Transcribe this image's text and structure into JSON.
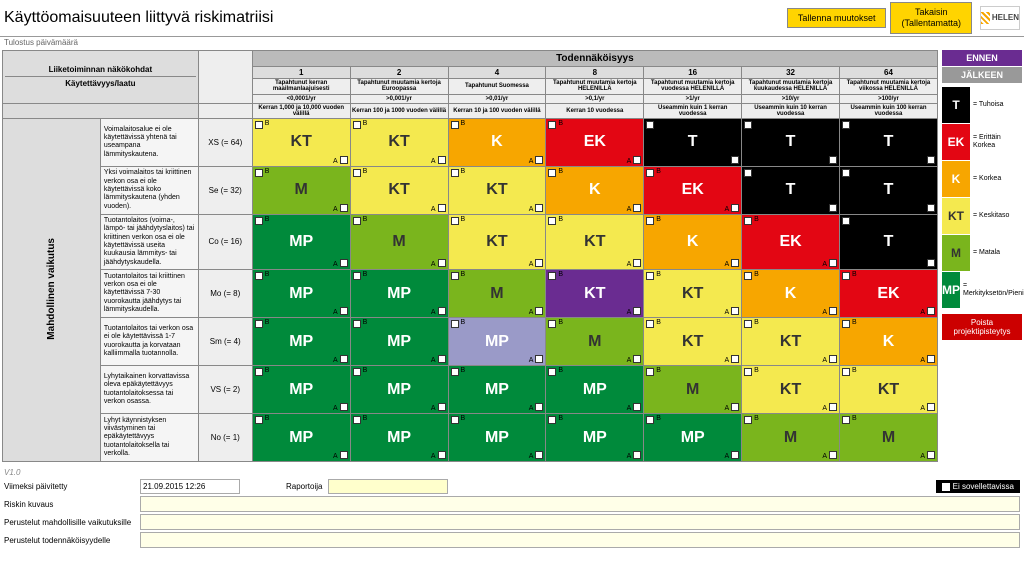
{
  "title": "Käyttöomaisuuteen liittyvä riskimatriisi",
  "subhead": "Tulostus päivämäärä",
  "buttons": {
    "save": "Tallenna muutokset",
    "back": "Takaisin\n(Tallentamatta)",
    "poista": "Poista projektipisteytys"
  },
  "logo": "HELEN",
  "side_btns": {
    "ennen": "ENNEN",
    "jalkeen": "JÄLKEEN"
  },
  "prob_header": "Todennäköisyys",
  "impact_header": "Mahdollinen vaikutus",
  "corner": {
    "line1": "Liiketoiminnan näkökohdat",
    "line2": "Käytettävyys/laatu"
  },
  "cols": [
    {
      "n": "1",
      "d1": "Tapahtunut kerran maailmanlaajuisesti",
      "d2": "<0,0001/yr",
      "d3": "Kerran 1,000 ja 10,000 vuoden välillä"
    },
    {
      "n": "2",
      "d1": "Tapahtunut muutamia kertoja Euroopassa",
      "d2": ">0,001/yr",
      "d3": "Kerran 100 ja 1000 vuoden välillä"
    },
    {
      "n": "4",
      "d1": "Tapahtunut Suomessa",
      "d2": ">0,01/yr",
      "d3": "Kerran 10 ja 100 vuoden välillä"
    },
    {
      "n": "8",
      "d1": "Tapahtunut muutamia kertoja HELENILLÄ",
      "d2": ">0,1/yr",
      "d3": "Kerran 10 vuodessa"
    },
    {
      "n": "16",
      "d1": "Tapahtunut muutamia kertoja vuodessa HELENILLÄ",
      "d2": ">1/yr",
      "d3": "Useammin kuin 1 kerran vuodessa"
    },
    {
      "n": "32",
      "d1": "Tapahtunut muutamia kertoja kuukaudessa HELENILLÄ",
      "d2": ">10/yr",
      "d3": "Useammin kuin 10 kerran vuodessa"
    },
    {
      "n": "64",
      "d1": "Tapahtunut muutamia kertoja viikossa HELENILLÄ",
      "d2": ">100/yr",
      "d3": "Useammin kuin 100 kerran vuodessa"
    }
  ],
  "rows": [
    {
      "desc": "Voimalaitosalue ei ole käytettävissä yhtenä tai useampana lämmityskautena.",
      "code": "XS (= 64)",
      "cells": [
        "KT",
        "KT",
        "K",
        "EK",
        "T",
        "T",
        "T"
      ]
    },
    {
      "desc": "Yksi voimalaitos tai kriittinen verkon osa ei ole käytettävissä koko lämmityskautena (yhden vuoden).",
      "code": "Se (= 32)",
      "cells": [
        "M",
        "KT",
        "KT",
        "K",
        "EK",
        "T",
        "T"
      ]
    },
    {
      "desc": "Tuotantolaitos (voima-, lämpö- tai jäähdytyslaitos) tai kriittinen verkon osa ei ole käytettävissä useita kuukausia lämmitys- tai jäähdytyskaudella.",
      "code": "Co (= 16)",
      "cells": [
        "MP",
        "M",
        "KT",
        "KT",
        "K",
        "EK",
        "T"
      ]
    },
    {
      "desc": "Tuotantolaitos tai kriittinen verkon osa ei ole käytettävissä 7-30 vuorokautta jäähdytys tai lämmityskaudella.",
      "code": "Mo (= 8)",
      "cells": [
        "MP",
        "MP",
        "M",
        "KT",
        "KT",
        "K",
        "EK"
      ]
    },
    {
      "desc": "Tuotantolaitos tai verkon osa ei ole käytettävissä 1-7 vuorokautta ja korvataan kalliimmalla tuotannolla.",
      "code": "Sm (= 4)",
      "cells": [
        "MP",
        "MP",
        "MP",
        "M",
        "KT",
        "KT",
        "K"
      ]
    },
    {
      "desc": "Lyhytaikainen korvattavissa oleva epäkäytettävyys tuotantolaitoksessa tai verkon osassa.",
      "code": "VS (= 2)",
      "cells": [
        "MP",
        "MP",
        "MP",
        "MP",
        "M",
        "KT",
        "KT"
      ]
    },
    {
      "desc": "Lyhyt käynnistyksen viivästyminen tai epäkäytettävyys tuotantolaitoksella tai verkolla.",
      "code": "No (= 1)",
      "cells": [
        "MP",
        "MP",
        "MP",
        "MP",
        "MP",
        "M",
        "M"
      ]
    }
  ],
  "colors": {
    "T": "#000000",
    "EK": "#e30613",
    "K": "#f7a600",
    "KT": "#f4e94f",
    "M": "#7ab51d",
    "MP": "#008a3b",
    "KT_sel": "#6a2c91",
    "MP_sel": "#9a9ac8"
  },
  "text_dark": [
    "KT",
    "M"
  ],
  "selected": {
    "3_3": "KT_sel",
    "4_2": "MP_sel"
  },
  "legend": [
    {
      "c": "#000000",
      "s": "T",
      "t": "= Tuhoisa"
    },
    {
      "c": "#e30613",
      "s": "EK",
      "t": "= Erittäin Korkea"
    },
    {
      "c": "#f7a600",
      "s": "K",
      "t": "= Korkea"
    },
    {
      "c": "#f4e94f",
      "s": "KT",
      "t": "= Keskitaso",
      "dark": true
    },
    {
      "c": "#7ab51d",
      "s": "M",
      "t": "= Matala",
      "dark": true
    },
    {
      "c": "#008a3b",
      "s": "MP",
      "t": "= Merkityksetön/Pieni"
    }
  ],
  "footer": {
    "ver": "V1.0",
    "viimeksi_lbl": "Viimeksi päivitetty",
    "viimeksi_val": "21.09.2015 12:26",
    "raportoija_lbl": "Raportoija",
    "raportoija_val": "",
    "ei_sov": "Ei sovellettavissa",
    "riskin": "Riskin kuvaus",
    "perust_vaik": "Perustelut mahdollisille vaikutuksille",
    "perust_tod": "Perustelut todennäköisyydelle"
  },
  "cb_labels": {
    "t": "B",
    "b": "A"
  }
}
